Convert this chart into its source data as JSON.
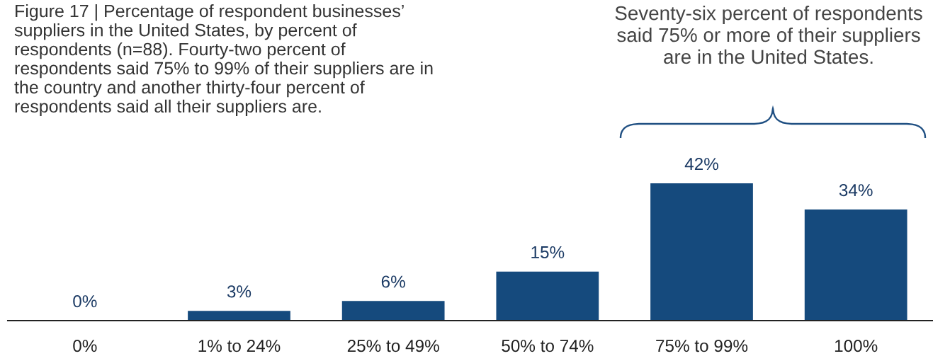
{
  "chart_data": {
    "type": "bar",
    "title": "Figure 17 | Percentage of respondent businesses’ suppliers in the United States, by percent of respondents (n=88). Fourty-two percent of respondents said 75% to 99% of their suppliers are in the country and another thirty-four percent of respondents said all their suppliers are.",
    "categories": [
      "0%",
      "1% to 24%",
      "25% to 49%",
      "50% to 74%",
      "75% to 99%",
      "100%"
    ],
    "values": [
      0,
      3,
      6,
      15,
      42,
      34
    ],
    "color": "#154a7d",
    "value_labels": [
      "0%",
      "3%",
      "6%",
      "15%",
      "42%",
      "34%"
    ],
    "annotations": [
      "Seventy-six percent of respondents said 75% or more of their suppliers are in the United States."
    ]
  }
}
